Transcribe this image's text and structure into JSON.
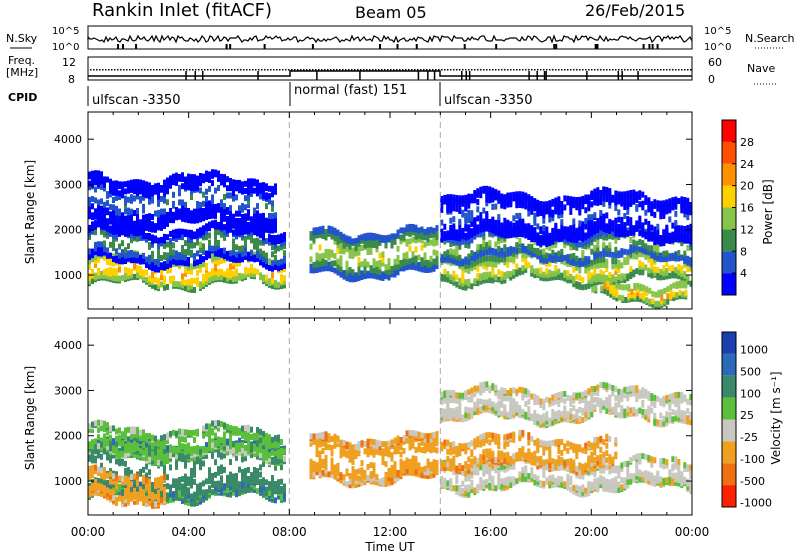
{
  "header": {
    "title": "Rankin Inlet (fitACF)",
    "beam": "Beam 05",
    "date": "26/Feb/2015"
  },
  "status_panel": {
    "nsky_label": "N.Sky",
    "nsky_ticks": [
      "10^5",
      "10^0"
    ],
    "nsearch_label": "N.Search",
    "nsearch_ticks": [
      "10^5",
      "10^0"
    ],
    "freq_label": "Freq.",
    "freq_unit": "[MHz]",
    "freq_ticks": [
      "12",
      "8"
    ],
    "nave_label": "Nave",
    "nave_ticks": [
      "60",
      "0"
    ],
    "cpid_label": "CPID",
    "cpid_segments": [
      {
        "label": "ulfscan -3350",
        "start_h": 0,
        "end_h": 8
      },
      {
        "label": "normal (fast) 151",
        "start_h": 8,
        "end_h": 14
      },
      {
        "label": "ulfscan -3350",
        "start_h": 14,
        "end_h": 24
      }
    ]
  },
  "colors": {
    "power": [
      "#0000ff",
      "#2255cc",
      "#3a8a4a",
      "#88c44a",
      "#ffd000",
      "#ff9000",
      "#ff5000",
      "#ff0000"
    ],
    "velocity": [
      "#1a3fb0",
      "#2a6ab8",
      "#3a8a6a",
      "#5abf3a",
      "#c8c8c0",
      "#f0a020",
      "#f07010",
      "#ff2000"
    ],
    "grid": "#aaaaaa"
  },
  "chart_data": [
    {
      "type": "heatmap",
      "name": "power-panel",
      "ylabel": "Slant Range [km]",
      "y_ticks": [
        1000,
        2000,
        3000,
        4000
      ],
      "ylim": [
        250,
        4600
      ],
      "x_ticks": [
        "00:00",
        "04:00",
        "08:00",
        "12:00",
        "16:00",
        "20:00",
        "00:00"
      ],
      "xlim": [
        0,
        24
      ],
      "colorbar": {
        "label": "Power [dB]",
        "ticks": [
          "28",
          "24",
          "20",
          "16",
          "12",
          "8",
          "4"
        ],
        "range": [
          0,
          32
        ]
      },
      "bands": [
        {
          "start_h": 0.0,
          "end_h": 7.8,
          "center_km": 1100,
          "width_km": 280,
          "value": 24
        },
        {
          "start_h": 0.0,
          "end_h": 7.8,
          "center_km": 1650,
          "width_km": 350,
          "value": 12
        },
        {
          "start_h": 0.0,
          "end_h": 7.5,
          "center_km": 2650,
          "width_km": 500,
          "value": 8
        },
        {
          "start_h": 8.8,
          "end_h": 13.9,
          "center_km": 1500,
          "width_km": 450,
          "value": 18
        },
        {
          "start_h": 14.0,
          "end_h": 24.0,
          "center_km": 1150,
          "width_km": 250,
          "value": 22
        },
        {
          "start_h": 14.0,
          "end_h": 24.0,
          "center_km": 1650,
          "width_km": 250,
          "value": 16
        },
        {
          "start_h": 14.0,
          "end_h": 24.0,
          "center_km": 2300,
          "width_km": 450,
          "value": 6
        },
        {
          "start_h": 20.0,
          "end_h": 23.8,
          "center_km": 650,
          "width_km": 150,
          "value": 24
        }
      ]
    },
    {
      "type": "heatmap",
      "name": "velocity-panel",
      "ylabel": "Slant Range [km]",
      "y_ticks": [
        1000,
        2000,
        3000,
        4000
      ],
      "ylim": [
        250,
        4600
      ],
      "x_ticks": [
        "00:00",
        "04:00",
        "08:00",
        "12:00",
        "16:00",
        "20:00",
        "00:00"
      ],
      "xlim": [
        0,
        24
      ],
      "xlabel": "Time UT",
      "colorbar": {
        "label": "Velocity [m s⁻¹]",
        "ticks": [
          "1000",
          "500",
          "100",
          "25",
          "-25",
          "-100",
          "-500",
          "-1000"
        ]
      },
      "bands": [
        {
          "start_h": 0.0,
          "end_h": 7.8,
          "center_km": 1250,
          "width_km": 600,
          "value": 300
        },
        {
          "start_h": 0.0,
          "end_h": 7.8,
          "center_km": 1850,
          "width_km": 300,
          "value": 80
        },
        {
          "start_h": 0.0,
          "end_h": 3.0,
          "center_km": 900,
          "width_km": 300,
          "value": -300
        },
        {
          "start_h": 8.8,
          "end_h": 13.9,
          "center_km": 1500,
          "width_km": 450,
          "value": -300
        },
        {
          "start_h": 14.0,
          "end_h": 24.0,
          "center_km": 1150,
          "width_km": 280,
          "value": 0
        },
        {
          "start_h": 14.0,
          "end_h": 21.0,
          "center_km": 1650,
          "width_km": 300,
          "value": -300
        },
        {
          "start_h": 14.0,
          "end_h": 24.0,
          "center_km": 2700,
          "width_km": 300,
          "value": 0
        }
      ]
    }
  ]
}
